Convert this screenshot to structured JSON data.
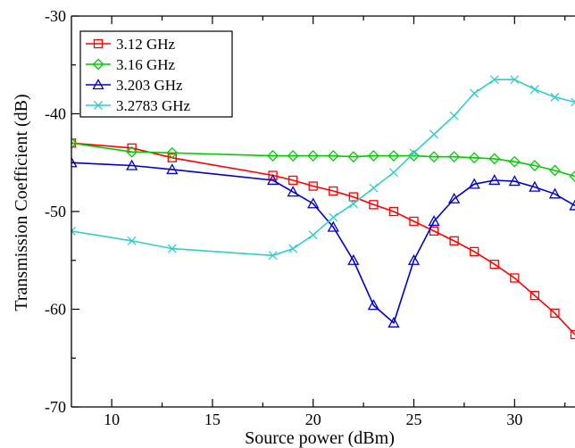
{
  "chart_data": {
    "type": "line",
    "title": "",
    "xlabel": "Source power (dBm)",
    "ylabel": "Transmission Coefficient (dB)",
    "xlim": [
      8,
      33
    ],
    "ylim": [
      -70,
      -30
    ],
    "xticks": [
      10,
      15,
      20,
      25,
      30
    ],
    "yticks": [
      -70,
      -60,
      -50,
      -40,
      -30
    ],
    "grid": false,
    "legend_position": "top-left",
    "series": [
      {
        "name": "3.12 GHz",
        "color": "#ff0000",
        "marker": "square",
        "x": [
          8,
          11,
          13,
          18,
          19,
          20,
          21,
          22,
          23,
          24,
          25,
          26,
          27,
          28,
          29,
          30,
          31,
          32,
          33
        ],
        "y": [
          -43.0,
          -43.5,
          -44.5,
          -46.3,
          -46.8,
          -47.4,
          -47.9,
          -48.5,
          -49.3,
          -50.0,
          -51.0,
          -52.0,
          -53.0,
          -54.1,
          -55.4,
          -56.8,
          -58.6,
          -60.4,
          -62.6
        ]
      },
      {
        "name": "3.16 GHz",
        "color": "#00cc00",
        "marker": "diamond",
        "x": [
          8,
          11,
          13,
          18,
          19,
          20,
          21,
          22,
          23,
          24,
          25,
          26,
          27,
          28,
          29,
          30,
          31,
          32,
          33
        ],
        "y": [
          -43.0,
          -43.9,
          -44.0,
          -44.3,
          -44.3,
          -44.3,
          -44.3,
          -44.4,
          -44.3,
          -44.3,
          -44.3,
          -44.4,
          -44.4,
          -44.5,
          -44.6,
          -44.9,
          -45.3,
          -45.8,
          -46.4
        ]
      },
      {
        "name": "3.203 GHz",
        "color": "#0000cc",
        "marker": "triangle",
        "x": [
          8,
          11,
          13,
          18,
          19,
          20,
          21,
          22,
          23,
          24,
          25,
          26,
          27,
          28,
          29,
          30,
          31,
          32,
          33
        ],
        "y": [
          -45.0,
          -45.3,
          -45.7,
          -46.8,
          -48.0,
          -49.2,
          -51.6,
          -55.0,
          -59.6,
          -61.4,
          -55.0,
          -51.0,
          -48.7,
          -47.2,
          -46.8,
          -46.9,
          -47.5,
          -48.2,
          -49.4
        ]
      },
      {
        "name": "3.2783 GHz",
        "color": "#33cccc",
        "marker": "x",
        "x": [
          8,
          11,
          13,
          18,
          19,
          20,
          21,
          22,
          23,
          24,
          25,
          26,
          27,
          28,
          29,
          30,
          31,
          32,
          33
        ],
        "y": [
          -52.0,
          -53.0,
          -53.8,
          -54.5,
          -53.8,
          -52.4,
          -50.6,
          -49.2,
          -47.6,
          -46.0,
          -44.0,
          -42.1,
          -40.2,
          -37.9,
          -36.5,
          -36.5,
          -37.5,
          -38.3,
          -38.8
        ]
      }
    ]
  }
}
